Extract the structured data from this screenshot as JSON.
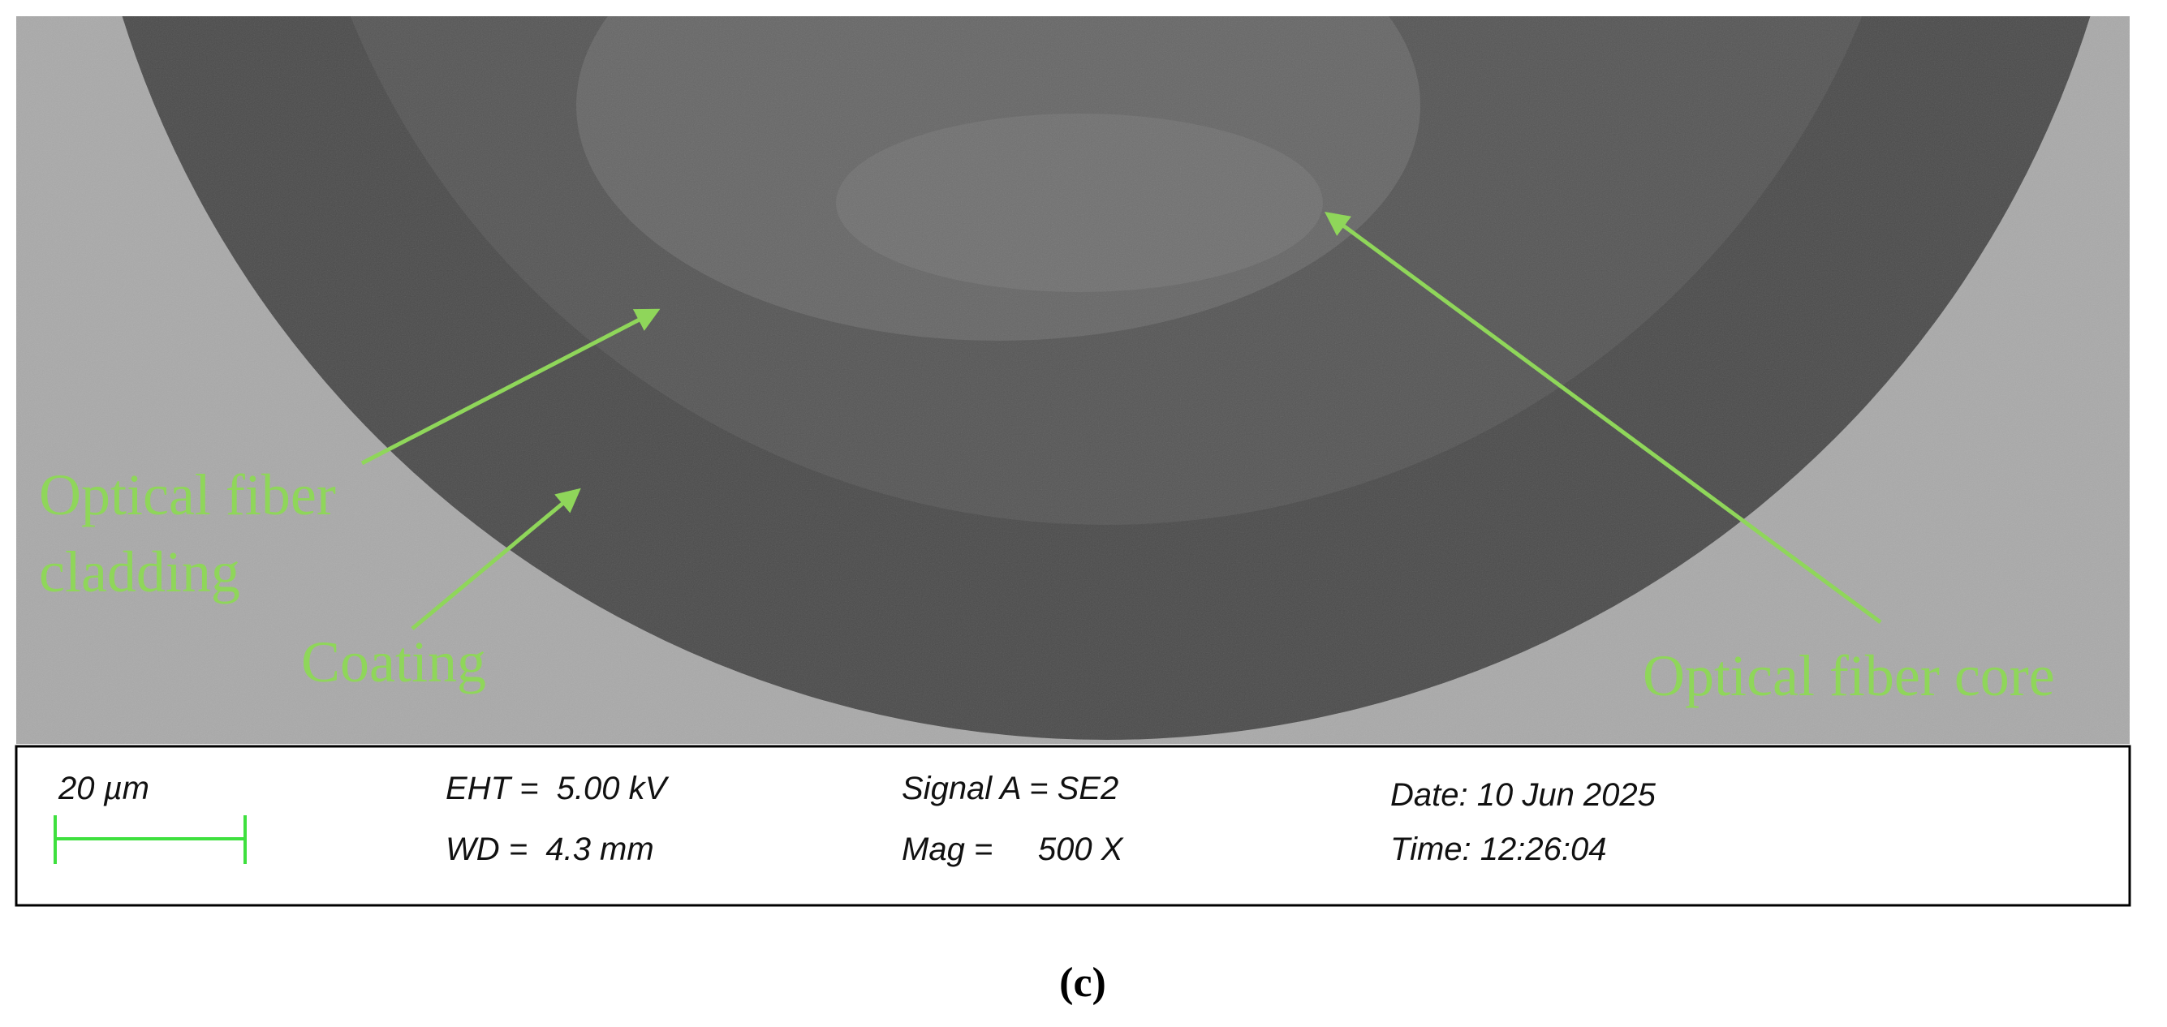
{
  "image": {
    "annotations": [
      "Optical fiber",
      "cladding",
      "Coating",
      "Optical fiber core"
    ]
  },
  "info_panel": {
    "scale_label": "20 µm",
    "eht": "EHT =  5.00 kV",
    "wd": "WD =  4.3 mm",
    "signal": "Signal A = SE2",
    "mag": "Mag =     500 X",
    "date": "Date: 10 Jun 2025",
    "time": "Time: 12:26:04"
  },
  "caption": "(c)"
}
